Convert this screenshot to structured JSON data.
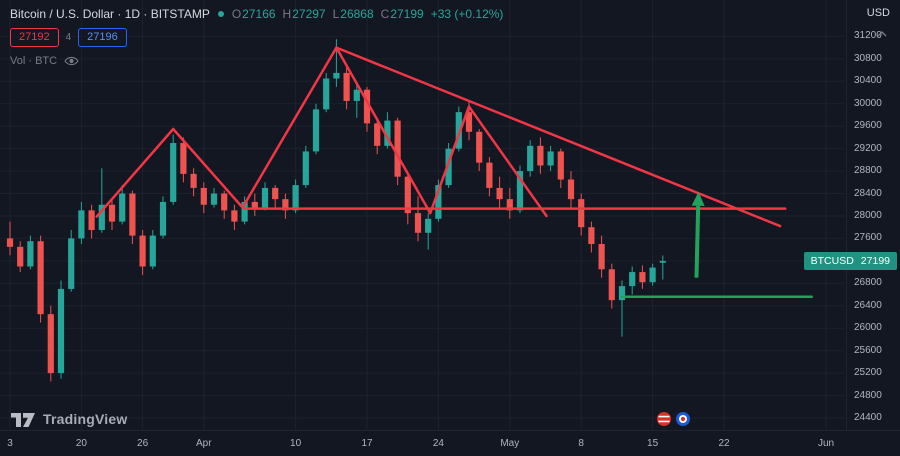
{
  "header": {
    "symbol_title": "Bitcoin / U.S. Dollar · 1D · BITSTAMP",
    "market_status_color": "#26a69a",
    "ohlc": {
      "o_label": "O",
      "o": "27166",
      "h_label": "H",
      "h": "27297",
      "l_label": "L",
      "l": "26868",
      "c_label": "C",
      "c": "27199",
      "change": "+33 (+0.12%)"
    },
    "sell_price": "27192",
    "spread": "4",
    "buy_price": "27196",
    "indicator_label": "Vol · BTC",
    "currency_label": "USD"
  },
  "badge": {
    "symbol": "BTCUSD",
    "price": "27199"
  },
  "footer": {
    "logo_text": "TradingView"
  },
  "chart_data": {
    "type": "candlestick",
    "title": "Bitcoin / U.S. Dollar",
    "symbol": "BTCUSD",
    "interval": "1D",
    "exchange": "BITSTAMP",
    "ylim": [
      24150,
      31350
    ],
    "y_ticks": [
      31200,
      30800,
      30400,
      30000,
      29600,
      29200,
      28800,
      28400,
      28000,
      27600,
      27200,
      26800,
      26400,
      26000,
      25600,
      25200,
      24800,
      24400
    ],
    "x_ticks": [
      {
        "label": "3",
        "i": 0
      },
      {
        "label": "20",
        "i": 7
      },
      {
        "label": "26",
        "i": 13
      },
      {
        "label": "Apr",
        "i": 19
      },
      {
        "label": "10",
        "i": 28
      },
      {
        "label": "17",
        "i": 35
      },
      {
        "label": "24",
        "i": 42
      },
      {
        "label": "May",
        "i": 49
      },
      {
        "label": "8",
        "i": 56
      },
      {
        "label": "15",
        "i": 63
      },
      {
        "label": "22",
        "i": 70
      },
      {
        "label": "Jun",
        "i": 80
      }
    ],
    "colors": {
      "up": "#26a69a",
      "down": "#ef5350",
      "drawing_red": "#f23645",
      "drawing_green": "#22a35b",
      "badge": "#1e9382",
      "sell": "#f23645",
      "buy": "#2962ff"
    },
    "candles": [
      [
        27600,
        27900,
        27300,
        27450
      ],
      [
        27450,
        27550,
        27000,
        27100
      ],
      [
        27100,
        27650,
        27050,
        27550
      ],
      [
        27550,
        27650,
        26100,
        26250
      ],
      [
        26250,
        26400,
        25050,
        25200
      ],
      [
        25200,
        26850,
        25100,
        26700
      ],
      [
        26700,
        27750,
        26650,
        27600
      ],
      [
        27600,
        28250,
        27500,
        28100
      ],
      [
        28100,
        28200,
        27600,
        27750
      ],
      [
        27750,
        28850,
        27700,
        28200
      ],
      [
        28200,
        28300,
        27750,
        27900
      ],
      [
        27900,
        28550,
        27850,
        28400
      ],
      [
        28400,
        28450,
        27500,
        27650
      ],
      [
        27650,
        27750,
        26950,
        27100
      ],
      [
        27100,
        27750,
        27050,
        27650
      ],
      [
        27650,
        28350,
        27600,
        28250
      ],
      [
        28250,
        29450,
        28200,
        29300
      ],
      [
        29300,
        29400,
        28600,
        28750
      ],
      [
        28750,
        28850,
        28350,
        28500
      ],
      [
        28500,
        28600,
        28050,
        28200
      ],
      [
        28200,
        28500,
        28150,
        28400
      ],
      [
        28400,
        28450,
        27950,
        28100
      ],
      [
        28100,
        28200,
        27750,
        27900
      ],
      [
        27900,
        28350,
        27850,
        28250
      ],
      [
        28250,
        28400,
        28000,
        28150
      ],
      [
        28150,
        28600,
        28100,
        28500
      ],
      [
        28500,
        28550,
        28150,
        28300
      ],
      [
        28300,
        28400,
        27950,
        28100
      ],
      [
        28100,
        28650,
        28050,
        28550
      ],
      [
        28550,
        29250,
        28500,
        29150
      ],
      [
        29150,
        30000,
        29100,
        29900
      ],
      [
        29900,
        30550,
        29850,
        30450
      ],
      [
        30450,
        31150,
        30300,
        30550
      ],
      [
        30550,
        30700,
        29900,
        30050
      ],
      [
        30050,
        30350,
        29750,
        30250
      ],
      [
        30250,
        30300,
        29500,
        29650
      ],
      [
        29650,
        29750,
        29100,
        29250
      ],
      [
        29250,
        29850,
        29200,
        29700
      ],
      [
        29700,
        29750,
        28550,
        28700
      ],
      [
        28700,
        28750,
        27850,
        28050
      ],
      [
        28050,
        28350,
        27550,
        27700
      ],
      [
        27700,
        28050,
        27400,
        27950
      ],
      [
        27950,
        28650,
        27900,
        28550
      ],
      [
        28550,
        29300,
        28500,
        29200
      ],
      [
        29200,
        29950,
        29150,
        29850
      ],
      [
        29850,
        30050,
        29350,
        29500
      ],
      [
        29500,
        29550,
        28800,
        28950
      ],
      [
        28950,
        29050,
        28350,
        28500
      ],
      [
        28500,
        28700,
        28150,
        28300
      ],
      [
        28300,
        28500,
        27950,
        28100
      ],
      [
        28100,
        28900,
        28050,
        28800
      ],
      [
        28800,
        29350,
        28700,
        29250
      ],
      [
        29250,
        29400,
        28750,
        28900
      ],
      [
        28900,
        29250,
        28800,
        29150
      ],
      [
        29150,
        29200,
        28500,
        28650
      ],
      [
        28650,
        28800,
        28150,
        28300
      ],
      [
        28300,
        28400,
        27650,
        27800
      ],
      [
        27800,
        27900,
        27350,
        27500
      ],
      [
        27500,
        27650,
        26900,
        27050
      ],
      [
        27050,
        27150,
        26350,
        26500
      ],
      [
        26500,
        26850,
        25850,
        26750
      ],
      [
        26750,
        27100,
        26600,
        27000
      ],
      [
        27000,
        27120,
        26700,
        26820
      ],
      [
        26820,
        27150,
        26760,
        27080
      ],
      [
        27166,
        27297,
        26868,
        27199
      ]
    ],
    "drawings": {
      "lines": [
        {
          "name": "zigzag-trendline",
          "color": "#f23645",
          "width": 2.5,
          "points": [
            [
              8.5,
              27990
            ],
            [
              16,
              29550
            ],
            [
              22.8,
              28150
            ],
            [
              32,
              31000
            ],
            [
              41.2,
              28050
            ],
            [
              45,
              29950
            ],
            [
              52.6,
              28000
            ]
          ]
        },
        {
          "name": "descending-trendline",
          "color": "#f23645",
          "width": 2.5,
          "points": [
            [
              32,
              31000
            ],
            [
              75.5,
              27820
            ]
          ]
        },
        {
          "name": "horizontal-resistance-line",
          "color": "#f23645",
          "width": 2.5,
          "points": [
            [
              23,
              28130
            ],
            [
              76,
              28130
            ]
          ]
        },
        {
          "name": "horizontal-support-line",
          "color": "#22a35b",
          "width": 2.5,
          "points": [
            [
              60,
              26560
            ],
            [
              78.6,
              26560
            ]
          ]
        }
      ],
      "arrow": {
        "name": "breakout-arrow",
        "color": "#22a35b",
        "from": [
          67.3,
          26900
        ],
        "to": [
          67.5,
          28430
        ]
      }
    }
  }
}
